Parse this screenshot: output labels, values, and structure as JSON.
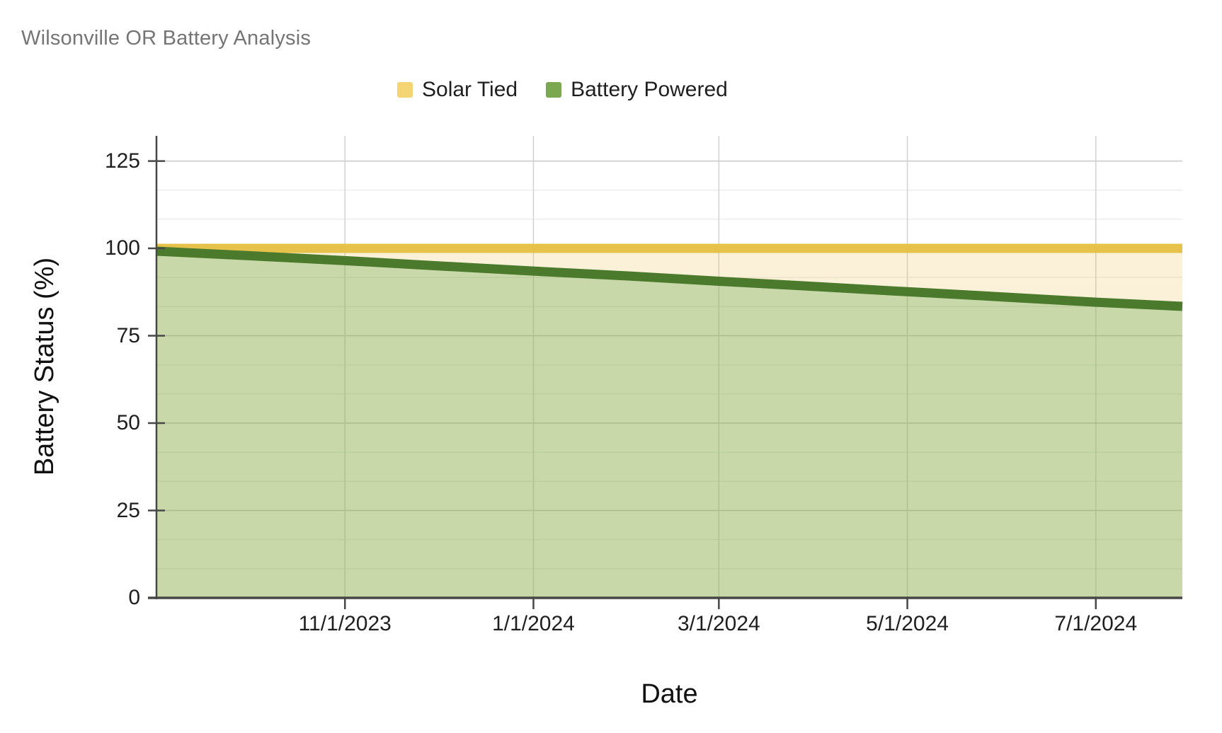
{
  "chart_data": {
    "type": "area",
    "title": "Wilsonville OR Battery Analysis",
    "title_color": "#757575",
    "xlabel": "Date",
    "ylabel": "Battery Status (%)",
    "ylim": [
      0,
      132.2
    ],
    "y_major_ticks": [
      0,
      25,
      50,
      75,
      100,
      125
    ],
    "y_minor_step": 8.3333,
    "x_domain_days": [
      0,
      332
    ],
    "x_ticks": [
      {
        "label": "11/1/2023",
        "day": 61
      },
      {
        "label": "1/1/2024",
        "day": 122
      },
      {
        "label": "3/1/2024",
        "day": 182
      },
      {
        "label": "5/1/2024",
        "day": 243
      },
      {
        "label": "7/1/2024",
        "day": 304
      }
    ],
    "legend_position": "top",
    "grid": {
      "major_color": "#c9c9c9",
      "minor_color": "#ededed",
      "vertical_color": "#d2d2d2",
      "axis_color": "#474747"
    },
    "series": [
      {
        "name": "Solar Tied",
        "swatch_color": "#f5d573",
        "line_color": "#e7c24b",
        "fill_color": "#e6c14d",
        "fill_opacity": 0.22,
        "line_width": 13,
        "points": [
          {
            "date": "9/1/2023",
            "day": 0,
            "value": 100
          },
          {
            "date": "7/29/2024",
            "day": 332,
            "value": 100
          }
        ]
      },
      {
        "name": "Battery Powered",
        "swatch_color": "#7ba750",
        "line_color": "#4b7a2d",
        "fill_color": "#6aa84f",
        "fill_opacity": 0.35,
        "line_width": 13,
        "points": [
          {
            "date": "9/1/2023",
            "day": 0,
            "value": 99.2
          },
          {
            "date": "10/1/2023",
            "day": 30,
            "value": 97.9
          },
          {
            "date": "11/1/2023",
            "day": 61,
            "value": 96.5
          },
          {
            "date": "12/1/2023",
            "day": 91,
            "value": 95.0
          },
          {
            "date": "1/1/2024",
            "day": 122,
            "value": 93.5
          },
          {
            "date": "2/1/2024",
            "day": 153,
            "value": 92.1
          },
          {
            "date": "3/1/2024",
            "day": 182,
            "value": 90.6
          },
          {
            "date": "4/1/2024",
            "day": 213,
            "value": 89.1
          },
          {
            "date": "5/1/2024",
            "day": 243,
            "value": 87.6
          },
          {
            "date": "6/1/2024",
            "day": 274,
            "value": 86.1
          },
          {
            "date": "7/1/2024",
            "day": 304,
            "value": 84.6
          },
          {
            "date": "7/29/2024",
            "day": 332,
            "value": 83.4
          }
        ]
      }
    ]
  }
}
